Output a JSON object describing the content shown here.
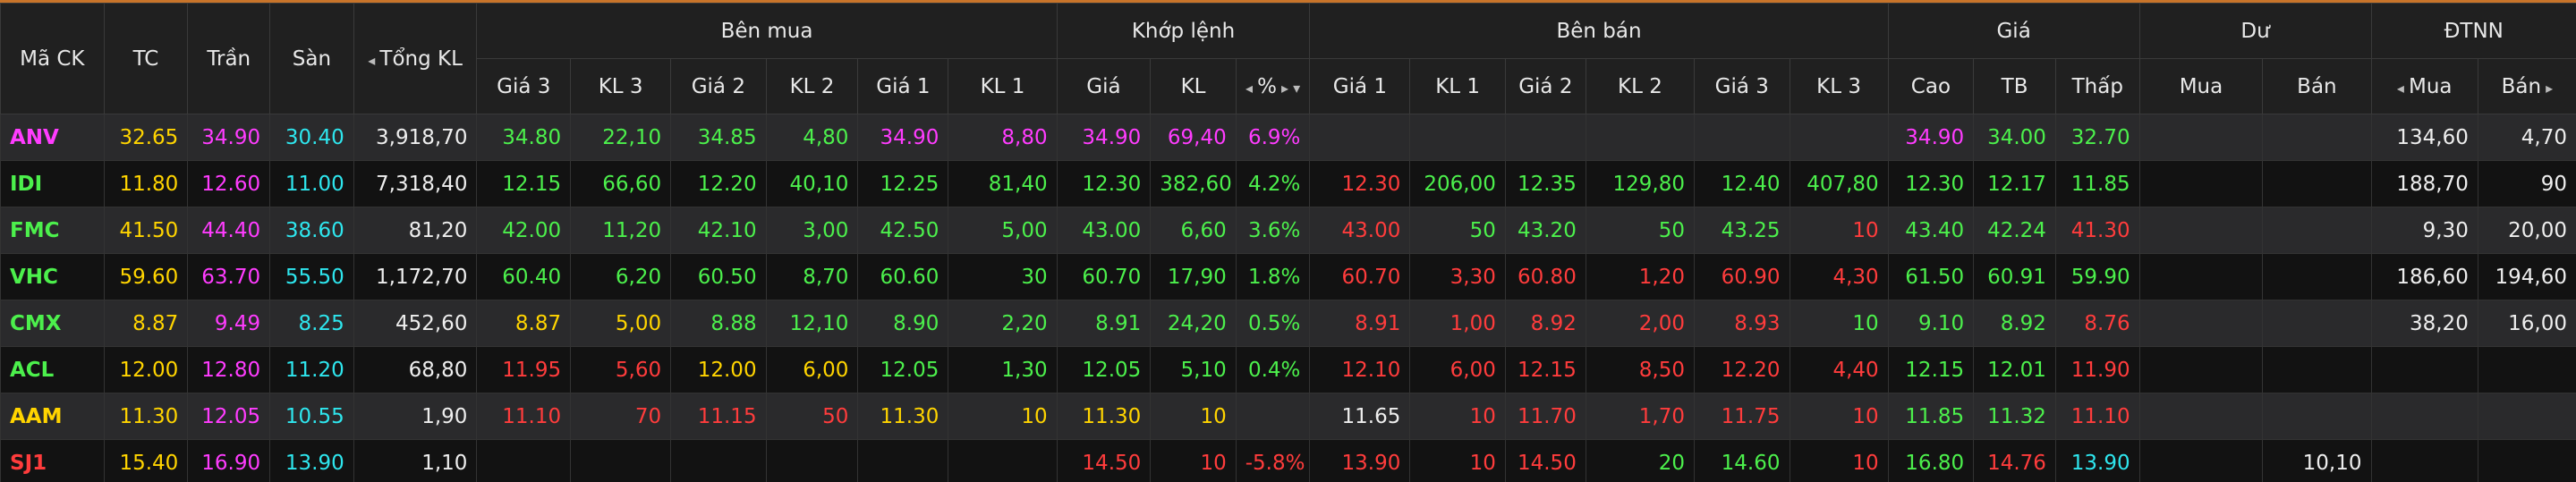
{
  "header": {
    "fixed_left": [
      "Mã CK",
      "TC",
      "Trần",
      "Sàn",
      "Tổng KL"
    ],
    "groups": [
      "Bên mua",
      "Khớp lệnh",
      "Bên bán",
      "Giá",
      "Dư",
      "ĐTNN"
    ],
    "columns": [
      "Giá 3",
      "KL 3",
      "Giá 2",
      "KL 2",
      "Giá 1",
      "KL 1",
      "Giá",
      "KL",
      "%",
      "Giá 1",
      "KL 1",
      "Giá 2",
      "KL 2",
      "Giá 3",
      "KL 3",
      "Cao",
      "TB",
      "Thấp",
      "Mua",
      "Bán",
      "Mua",
      "Bán"
    ]
  },
  "table": {
    "rows": [
      [
        "ANV",
        "32.65",
        "34.90",
        "30.40",
        "3,918,70",
        "34.80",
        "22,10",
        "34.85",
        "4,80",
        "34.90",
        "8,80",
        "34.90",
        "69,40",
        "6.9%",
        null,
        null,
        null,
        null,
        null,
        null,
        "34.90",
        "34.00",
        "32.70",
        null,
        null,
        "134,60",
        "4,70"
      ],
      [
        "IDI",
        "11.80",
        "12.60",
        "11.00",
        "7,318,40",
        "12.15",
        "66,60",
        "12.20",
        "40,10",
        "12.25",
        "81,40",
        "12.30",
        "382,60",
        "4.2%",
        "12.30",
        "206,00",
        "12.35",
        "129,80",
        "12.40",
        "407,80",
        "12.30",
        "12.17",
        "11.85",
        null,
        null,
        "188,70",
        "90"
      ],
      [
        "FMC",
        "41.50",
        "44.40",
        "38.60",
        "81,20",
        "42.00",
        "11,20",
        "42.10",
        "3,00",
        "42.50",
        "5,00",
        "43.00",
        "6,60",
        "3.6%",
        "43.00",
        "50",
        "43.20",
        "50",
        "43.25",
        "10",
        "43.40",
        "42.24",
        "41.30",
        null,
        null,
        "9,30",
        "20,00"
      ],
      [
        "VHC",
        "59.60",
        "63.70",
        "55.50",
        "1,172,70",
        "60.40",
        "6,20",
        "60.50",
        "8,70",
        "60.60",
        "30",
        "60.70",
        "17,90",
        "1.8%",
        "60.70",
        "3,30",
        "60.80",
        "1,20",
        "60.90",
        "4,30",
        "61.50",
        "60.91",
        "59.90",
        null,
        null,
        "186,60",
        "194,60"
      ],
      [
        "CMX",
        "8.87",
        "9.49",
        "8.25",
        "452,60",
        "8.87",
        "5,00",
        "8.88",
        "12,10",
        "8.90",
        "2,20",
        "8.91",
        "24,20",
        "0.5%",
        "8.91",
        "1,00",
        "8.92",
        "2,00",
        "8.93",
        "10",
        "9.10",
        "8.92",
        "8.76",
        null,
        null,
        "38,20",
        "16,00"
      ],
      [
        "ACL",
        "12.00",
        "12.80",
        "11.20",
        "68,80",
        "11.95",
        "5,60",
        "12.00",
        "6,00",
        "12.05",
        "1,30",
        "12.05",
        "5,10",
        "0.4%",
        "12.10",
        "6,00",
        "12.15",
        "8,50",
        "12.20",
        "4,40",
        "12.15",
        "12.01",
        "11.90",
        null,
        null,
        null,
        null
      ],
      [
        "AAM",
        "11.30",
        "12.05",
        "10.55",
        "1,90",
        "11.10",
        "70",
        "11.15",
        "50",
        "11.30",
        "10",
        "11.30",
        "10",
        null,
        "11.65",
        "10",
        "11.70",
        "1,70",
        "11.75",
        "10",
        "11.85",
        "11.32",
        "11.10",
        null,
        null,
        null,
        null
      ],
      [
        "SJ1",
        "15.40",
        "16.90",
        "13.90",
        "1,10",
        null,
        null,
        null,
        null,
        null,
        null,
        "14.50",
        "10",
        "-5.8%",
        "13.90",
        "10",
        "14.50",
        "20",
        "14.60",
        "10",
        "16.80",
        "14.76",
        "13.90",
        null,
        "10,10",
        null,
        null
      ]
    ]
  }
}
